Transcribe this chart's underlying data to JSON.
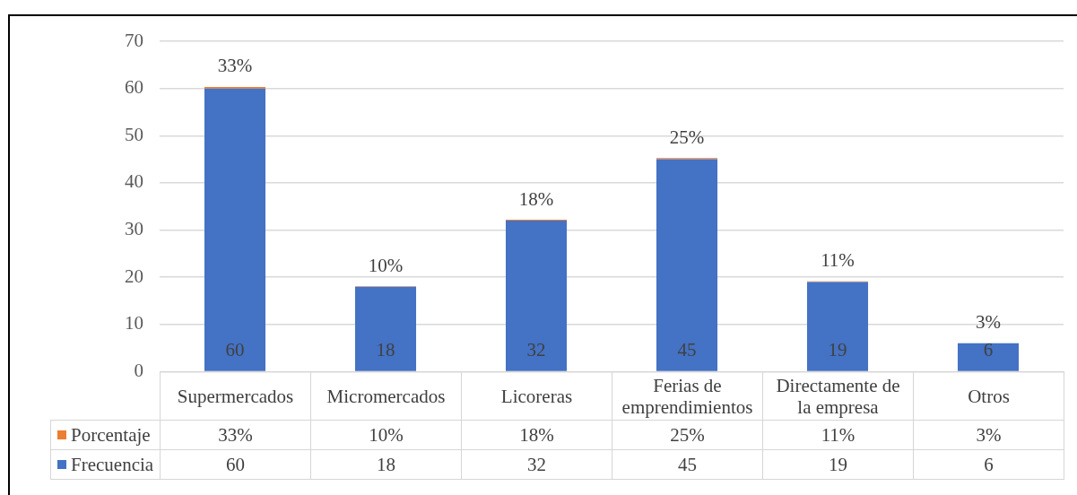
{
  "chart_data": {
    "type": "bar",
    "stacked": true,
    "categories": [
      "Supermercados",
      "Micromercados",
      "Licoreras",
      "Ferias de emprendimientos",
      "Directamente de la empresa",
      "Otros"
    ],
    "series": [
      {
        "name": "Frecuencia",
        "color": "#4472c4",
        "values": [
          60,
          18,
          32,
          45,
          19,
          6
        ],
        "value_labels": [
          "60",
          "18",
          "32",
          "45",
          "19",
          "6"
        ]
      },
      {
        "name": "Porcentaje",
        "color": "#ed7d31",
        "values": [
          0.33,
          0.1,
          0.18,
          0.25,
          0.11,
          0.03
        ],
        "value_labels": [
          "33%",
          "10%",
          "18%",
          "25%",
          "11%",
          "3%"
        ]
      }
    ],
    "ylim": [
      0,
      70
    ],
    "yticks": [
      0,
      10,
      20,
      30,
      40,
      50,
      60,
      70
    ],
    "grid": "y",
    "legend": "bottom"
  }
}
